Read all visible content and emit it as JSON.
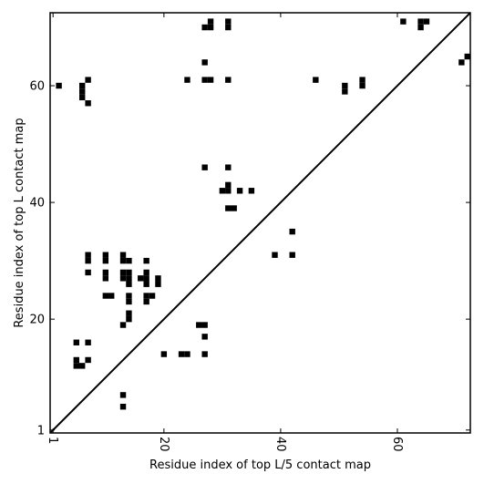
{
  "chart_data": {
    "type": "heatmap",
    "title": "",
    "xlabel": "Residue index of top L/5 contact map",
    "ylabel": "Residue index of top L contact map",
    "xlim": [
      0.5,
      72.5
    ],
    "ylim": [
      0.5,
      72.5
    ],
    "xticks": [
      1,
      20,
      40,
      60
    ],
    "yticks": [
      1,
      20,
      40,
      60
    ],
    "xtick_labels": [
      "1",
      "20",
      "40",
      "60"
    ],
    "ytick_labels": [
      "1",
      "20",
      "40",
      "60"
    ],
    "diagonal": [
      [
        1,
        1
      ],
      [
        72,
        72
      ]
    ],
    "grid": false,
    "cells": [
      [
        2,
        60
      ],
      [
        6,
        59
      ],
      [
        6,
        60
      ],
      [
        6,
        58
      ],
      [
        7,
        61
      ],
      [
        7,
        57
      ],
      [
        5,
        16
      ],
      [
        5,
        13
      ],
      [
        5,
        12
      ],
      [
        6,
        12
      ],
      [
        7,
        16
      ],
      [
        7,
        13
      ],
      [
        7,
        31
      ],
      [
        7,
        30
      ],
      [
        7,
        28
      ],
      [
        10,
        31
      ],
      [
        10,
        30
      ],
      [
        10,
        28
      ],
      [
        10,
        27
      ],
      [
        10,
        24
      ],
      [
        11,
        24
      ],
      [
        13,
        31
      ],
      [
        13,
        30
      ],
      [
        13,
        28
      ],
      [
        13,
        27
      ],
      [
        14,
        30
      ],
      [
        14,
        28
      ],
      [
        14,
        27
      ],
      [
        14,
        26
      ],
      [
        14,
        24
      ],
      [
        14,
        23
      ],
      [
        14,
        21
      ],
      [
        14,
        20
      ],
      [
        13,
        19
      ],
      [
        13,
        7
      ],
      [
        13,
        5
      ],
      [
        16,
        27
      ],
      [
        17,
        30
      ],
      [
        17,
        28
      ],
      [
        17,
        27
      ],
      [
        17,
        26
      ],
      [
        17,
        24
      ],
      [
        17,
        23
      ],
      [
        18,
        24
      ],
      [
        19,
        27
      ],
      [
        19,
        26
      ],
      [
        20,
        14
      ],
      [
        23,
        14
      ],
      [
        24,
        14
      ],
      [
        26,
        19
      ],
      [
        27,
        19
      ],
      [
        27,
        17
      ],
      [
        27,
        14
      ],
      [
        24,
        61
      ],
      [
        27,
        70
      ],
      [
        28,
        71
      ],
      [
        28,
        70
      ],
      [
        27,
        64
      ],
      [
        27,
        61
      ],
      [
        28,
        61
      ],
      [
        31,
        71
      ],
      [
        31,
        70
      ],
      [
        31,
        61
      ],
      [
        27,
        46
      ],
      [
        31,
        46
      ],
      [
        30,
        42
      ],
      [
        31,
        43
      ],
      [
        31,
        42
      ],
      [
        33,
        42
      ],
      [
        35,
        42
      ],
      [
        31,
        39
      ],
      [
        32,
        39
      ],
      [
        39,
        31
      ],
      [
        42,
        35
      ],
      [
        42,
        31
      ],
      [
        46,
        61
      ],
      [
        51,
        60
      ],
      [
        51,
        59
      ],
      [
        54,
        61
      ],
      [
        54,
        60
      ],
      [
        61,
        71
      ],
      [
        64,
        71
      ],
      [
        64,
        70
      ],
      [
        65,
        71
      ],
      [
        71,
        64
      ],
      [
        72,
        65
      ]
    ]
  }
}
